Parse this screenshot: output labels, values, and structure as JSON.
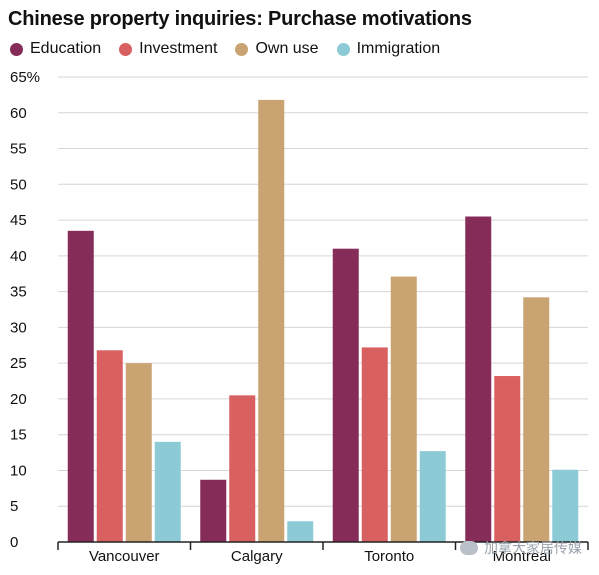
{
  "chart_data": {
    "type": "bar",
    "title": "Chinese property inquiries: Purchase motivations",
    "categories": [
      "Vancouver",
      "Calgary",
      "Toronto",
      "Montreal"
    ],
    "series": [
      {
        "name": "Education",
        "color": "#862c58",
        "values": [
          43.5,
          8.7,
          41.0,
          45.5
        ]
      },
      {
        "name": "Investment",
        "color": "#d96060",
        "values": [
          26.8,
          20.5,
          27.2,
          23.2
        ]
      },
      {
        "name": "Own use",
        "color": "#c9a472",
        "values": [
          25.0,
          61.8,
          37.1,
          34.2
        ]
      },
      {
        "name": "Immigration",
        "color": "#8ccbd5",
        "values": [
          14.0,
          2.9,
          12.7,
          10.1
        ]
      }
    ],
    "ylim": [
      0,
      65
    ],
    "yticks": [
      0,
      5,
      10,
      15,
      20,
      25,
      30,
      35,
      40,
      45,
      50,
      55,
      60,
      65
    ],
    "ytick_labels": [
      "0",
      "5",
      "10",
      "15",
      "20",
      "25",
      "30",
      "35",
      "40",
      "45",
      "50",
      "55",
      "60",
      "65%"
    ],
    "grid": true,
    "legend_position": "top-left"
  },
  "watermark": {
    "text": "加拿大家居传媒"
  }
}
